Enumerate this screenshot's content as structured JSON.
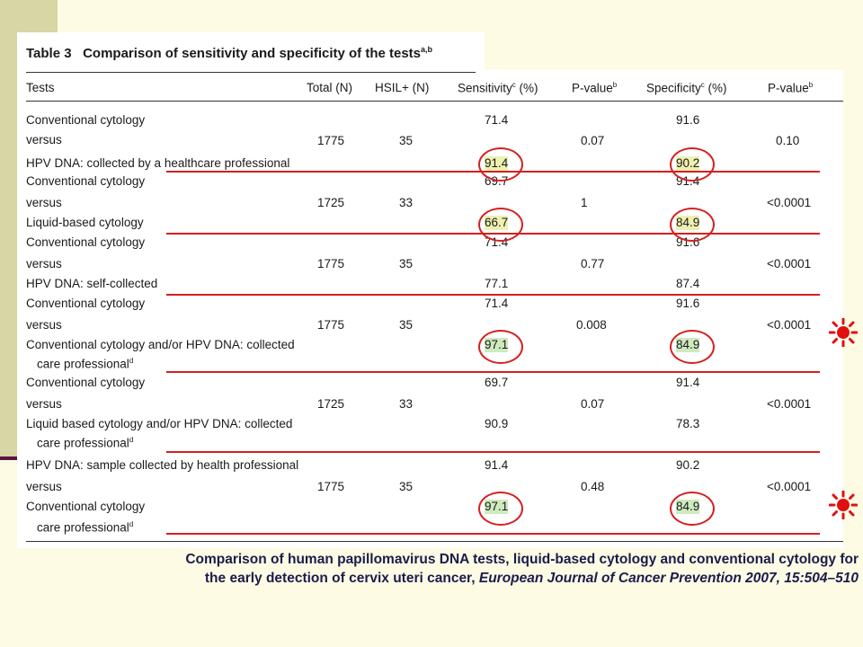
{
  "table": {
    "title_prefix": "Table 3",
    "title": "Comparison of sensitivity and specificity of the tests",
    "title_sup": "a,b",
    "headers": {
      "tests": "Tests",
      "total": "Total (N)",
      "hsil": "HSIL+ (N)",
      "sensitivity": "Sensitivity",
      "sensitivity_sup": "c",
      "sensitivity_unit": "(%)",
      "pvalue1": "P-value",
      "pvalue1_sup": "b",
      "specificity": "Specificity",
      "specificity_sup": "c",
      "specificity_unit": "(%)",
      "pvalue2": "P-value",
      "pvalue2_sup": "b"
    },
    "rows": [
      {
        "test_a": "Conventional cytology",
        "versus": "versus",
        "test_b": "HPV DNA: collected by a healthcare professional",
        "test_b2": "",
        "total": "1775",
        "hsil": "35",
        "sens_a": "71.4",
        "sens_b": "91.4",
        "p1": "0.07",
        "spec_a": "91.6",
        "spec_b": "90.2",
        "p2": "0.10"
      },
      {
        "test_a": "Conventional cytology",
        "versus": "versus",
        "test_b": "Liquid-based cytology",
        "test_b2": "",
        "total": "1725",
        "hsil": "33",
        "sens_a": "69.7",
        "sens_b": "66.7",
        "p1": "1",
        "spec_a": "91.4",
        "spec_b": "84.9",
        "p2": "<0.0001"
      },
      {
        "test_a": "Conventional cytology",
        "versus": "versus",
        "test_b": "HPV DNA: self-collected",
        "test_b2": "",
        "total": "1775",
        "hsil": "35",
        "sens_a": "71.4",
        "sens_b": "77.1",
        "p1": "0.77",
        "spec_a": "91.6",
        "spec_b": "87.4",
        "p2": "<0.0001"
      },
      {
        "test_a": "Conventional cytology",
        "versus": "versus",
        "test_b": "Conventional cytology and/or HPV DNA: collected",
        "test_b2": "care professional",
        "test_b2_sup": "d",
        "total": "1775",
        "hsil": "35",
        "sens_a": "71.4",
        "sens_b": "97.1",
        "p1": "0.008",
        "spec_a": "91.6",
        "spec_b": "84.9",
        "p2": "<0.0001"
      },
      {
        "test_a": "Conventional cytology",
        "versus": "versus",
        "test_b": "Liquid based cytology and/or HPV DNA: collected",
        "test_b2": "care professional",
        "test_b2_sup": "d",
        "total": "1725",
        "hsil": "33",
        "sens_a": "69.7",
        "sens_b": "90.9",
        "p1": "0.07",
        "spec_a": "91.4",
        "spec_b": "78.3",
        "p2": "<0.0001"
      },
      {
        "test_a": "HPV DNA: sample collected by health professional",
        "versus": "versus",
        "test_b": "Conventional cytology",
        "test_b2": "care professional",
        "test_b2_sup": "d",
        "total": "1775",
        "hsil": "35",
        "sens_a": "91.4",
        "sens_b": "97.1",
        "p1": "0.48",
        "spec_a": "90.2",
        "spec_b": "84.9",
        "p2": "<0.0001"
      }
    ]
  },
  "caption": {
    "line1": "Comparison of human papillomavirus DNA tests, liquid-based cytology and conventional cytology for",
    "line2_prefix": "the early detection of cervix uteri cancer, ",
    "line2_journal": "European Journal of Cancer Prevention 2007, 15:504–510"
  },
  "colors": {
    "annotation_red": "#d42020",
    "highlight_yellow": "#eef0b0",
    "highlight_green": "#cfeabf",
    "caption_navy": "#1b1b4c",
    "left_band": "#d8d6a4"
  },
  "annotations": {
    "icons": [
      "sun-icon",
      "sun-icon"
    ]
  }
}
